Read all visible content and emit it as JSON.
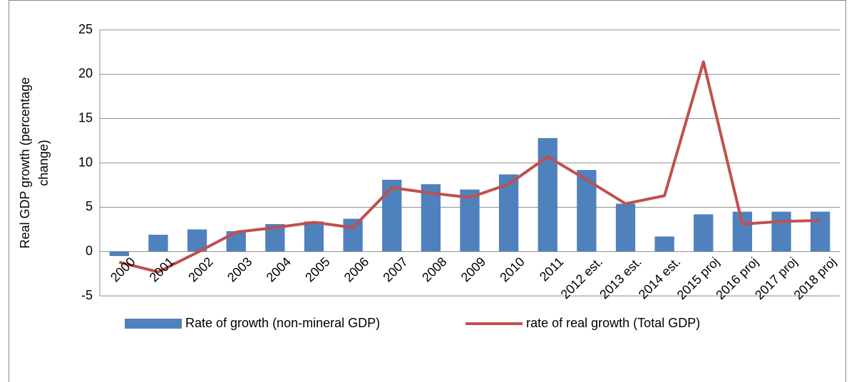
{
  "chart_data": {
    "type": "bar-line",
    "ylabel": [
      "Real GDP growth (percentage",
      "change)"
    ],
    "categories": [
      "2000",
      "2001",
      "2002",
      "2003",
      "2004",
      "2005",
      "2006",
      "2007",
      "2008",
      "2009",
      "2010",
      "2011",
      "2012 est.",
      "2013 est.",
      "2014 est.",
      "2015 proj",
      "2016 proj",
      "2017 proj",
      "2018 proj"
    ],
    "series": [
      {
        "name": "Rate of growth (non-mineral GDP)",
        "type": "bar",
        "color": "#4f81bd",
        "values": [
          -0.5,
          1.9,
          2.5,
          2.3,
          3.1,
          3.4,
          3.7,
          8.1,
          7.6,
          7.0,
          8.7,
          12.8,
          9.2,
          5.4,
          1.7,
          4.2,
          4.5,
          4.5,
          4.5
        ]
      },
      {
        "name": "rate of real growth (Total GDP)",
        "type": "line",
        "color": "#c0504d",
        "values": [
          -1.2,
          -2.3,
          -0.1,
          2.2,
          2.7,
          3.3,
          2.7,
          7.2,
          6.6,
          6.1,
          7.6,
          10.7,
          8.1,
          5.4,
          6.3,
          21.4,
          3.1,
          3.4,
          3.5
        ]
      }
    ],
    "ylim": [
      -5,
      25
    ],
    "yticks": [
      -5,
      0,
      5,
      10,
      15,
      20,
      25
    ],
    "grid": true,
    "legend": "bottom"
  }
}
